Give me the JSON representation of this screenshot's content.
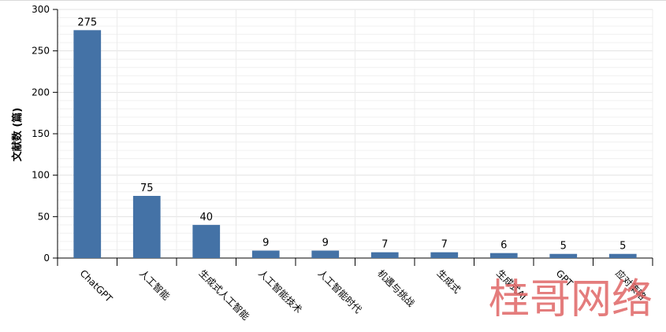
{
  "chart_data": {
    "type": "bar",
    "categories": [
      "ChatGPT",
      "人工智能",
      "生成式人工智能",
      "人工智能技术",
      "人工智能时代",
      "机遇与挑战",
      "生成式",
      "生成式AI",
      "GPT",
      "应对策略"
    ],
    "values": [
      275,
      75,
      40,
      9,
      9,
      7,
      7,
      6,
      5,
      5
    ],
    "ylabel": "文献数 (篇)",
    "xlabel": "",
    "ylim": [
      0,
      300
    ],
    "yticks": [
      0,
      50,
      100,
      150,
      200,
      250,
      300
    ],
    "grid": true,
    "bar_color": "#4472a6"
  },
  "watermark": "桂哥网络"
}
